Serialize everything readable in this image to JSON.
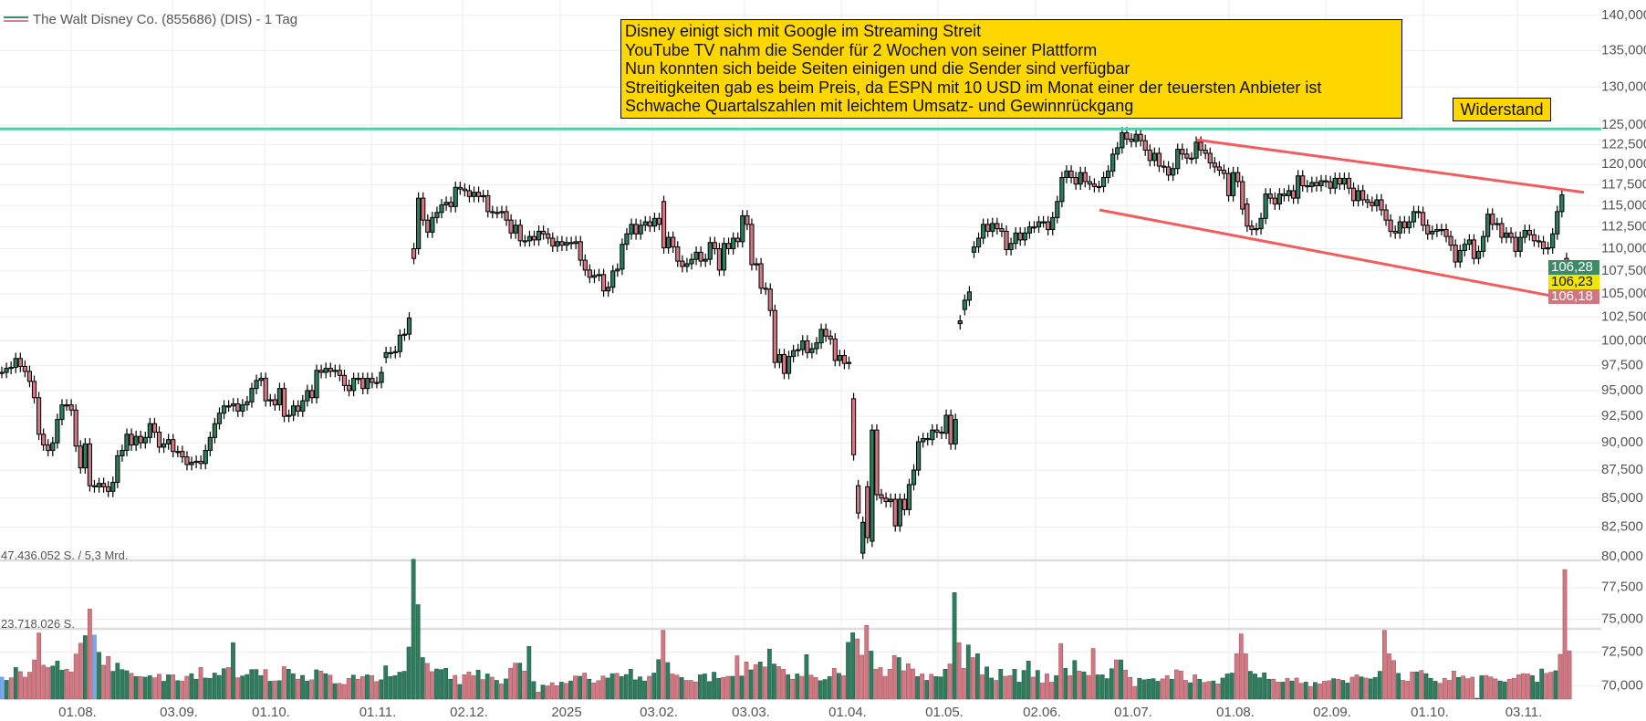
{
  "legend": {
    "title": "The Walt Disney Co. (855686) (DIS) - 1 Tag",
    "icon": "line-legend-icon"
  },
  "annotations": {
    "news_lines": [
      "Disney einigt sich mit Google im Streaming Streit",
      "YouTube TV nahm die Sender für 2 Wochen von seiner Plattform",
      "Nun konnten sich beide Seiten einigen und die Sender sind verfügbar",
      "Streitigkeiten gab es beim Preis, da ESPN mit 10 USD im Monat einer der teuersten Anbieter ist",
      "Schwache Quartalszahlen mit leichtem Umsatz- und Gewinnrückgang"
    ],
    "resistance_label": "Widerstand"
  },
  "price_labels": [
    {
      "value": "106,28",
      "bg": "#3d8a68",
      "fg": "#ffffff"
    },
    {
      "value": "106,23",
      "bg": "#f2e600",
      "fg": "#111111"
    },
    {
      "value": "106,18",
      "bg": "#d07680",
      "fg": "#ffffff"
    }
  ],
  "volume_labels": {
    "max": "47.436.052 S. / 5,3 Mrd.",
    "mid": "23.718.026 S."
  },
  "colors": {
    "up": "#2e7d5e",
    "down": "#d17882",
    "highlight_volume": "#79a8ee",
    "resistance_line": "#4fd1a5",
    "trend_lines": "#f25c5c",
    "annotation_bg": "#ffd700",
    "grid": "#ededed"
  },
  "chart_data": {
    "type": "candlestick",
    "title": "The Walt Disney Co. (855686) (DIS) - 1 Tag",
    "y_scale": "log",
    "ylim": [
      70,
      140
    ],
    "grid": true,
    "y_ticks": [
      140,
      135,
      130,
      125,
      122.5,
      120,
      117.5,
      115,
      112.5,
      110,
      107.5,
      105,
      102.5,
      100,
      97.5,
      95,
      92.5,
      90,
      87.5,
      85,
      82.5,
      80,
      77.5,
      75,
      72.5,
      70
    ],
    "y_tick_labels": [
      "140,000",
      "135,000",
      "130,000",
      "125,000",
      "122,500",
      "120,000",
      "117,500",
      "115,000",
      "112,500",
      "110,000",
      "107,500",
      "105,000",
      "102,500",
      "100,000",
      "97,500",
      "95,000",
      "92,500",
      "90,000",
      "87,500",
      "85,000",
      "82,500",
      "80,000",
      "77,500",
      "75,000",
      "72,500",
      "70,000"
    ],
    "x_tick_labels": [
      "01.08.",
      "03.09.",
      "01.10.",
      "01.11.",
      "02.12.",
      "2025",
      "03.02.",
      "03.03.",
      "01.04.",
      "01.05.",
      "02.06.",
      "01.07.",
      "01.08.",
      "02.09.",
      "01.10.",
      "03.11."
    ],
    "candles_note_format": "close, or [open, close] on gap days",
    "closes": [
      96.8,
      97.2,
      97.3,
      98.2,
      97.4,
      96.9,
      95.9,
      94.3,
      90.8,
      89.8,
      89.3,
      90.0,
      92.2,
      93.6,
      93.6,
      93.1,
      89.7,
      87.7,
      89.9,
      86.1,
      86.0,
      86.3,
      86.0,
      85.6,
      86.4,
      88.8,
      89.3,
      90.8,
      89.8,
      90.6,
      90.0,
      90.5,
      91.8,
      91.0,
      89.6,
      89.9,
      90.3,
      89.2,
      89.2,
      88.7,
      88.0,
      88.2,
      88.3,
      88.1,
      89.3,
      90.5,
      91.8,
      92.8,
      93.5,
      93.5,
      93.7,
      93.0,
      93.6,
      93.9,
      95.2,
      96.0,
      96.2,
      94.0,
      94.1,
      93.6,
      95.2,
      92.5,
      92.6,
      93.5,
      93.0,
      94.0,
      95.0,
      94.3,
      97.0,
      96.8,
      97.2,
      96.9,
      97.0,
      96.5,
      95.5,
      95.0,
      96.2,
      96.2,
      95.2,
      96.2,
      95.8,
      95.8,
      96.8,
      [
        98.3,
        98.8
      ],
      98.8,
      98.9,
      100.6,
      100.7,
      102.4,
      [
        110.0,
        108.9
      ],
      [
        110.0,
        115.9
      ],
      113.3,
      111.9,
      113.6,
      114.2,
      115.1,
      115.4,
      114.9,
      117.2,
      117.0,
      116.8,
      116.1,
      116.6,
      116.1,
      116.2,
      114.3,
      114.2,
      114.2,
      114.3,
      113.3,
      111.8,
      112.7,
      110.9,
      110.9,
      111.4,
      111.0,
      112.0,
      111.7,
      111.2,
      110.3,
      110.8,
      110.4,
      110.7,
      110.6,
      110.8,
      108.7,
      107.6,
      106.8,
      107.0,
      107.1,
      105.3,
      105.7,
      107.5,
      107.7,
      110.5,
      111.7,
      112.8,
      111.7,
      112.7,
      113.1,
      112.6,
      113.5,
      112.8,
      [
        115.5,
        110.1
      ],
      111.3,
      110.2,
      108.6,
      108.0,
      108.3,
      108.8,
      109.6,
      108.6,
      108.8,
      110.7,
      110.0,
      107.6,
      110.6,
      110.0,
      111.2,
      110.8,
      113.8,
      112.8,
      108.2,
      108.3,
      105.6,
      105.5,
      103.2,
      97.8,
      98.6,
      96.7,
      98.4,
      99.0,
      99.1,
      100.0,
      98.8,
      99.2,
      99.8,
      101.2,
      100.5,
      100.2,
      98.0,
      98.5,
      97.7,
      97.8,
      [
        94.2,
        88.9
      ],
      [
        86.1,
        83.7
      ],
      [
        80.3,
        82.9
      ],
      [
        86.0,
        81.6
      ],
      [
        81.3,
        91.2
      ],
      85.3,
      85.0,
      84.7,
      84.9,
      82.6,
      84.9,
      84.0,
      86.2,
      87.5,
      90.1,
      90.4,
      90.3,
      91.2,
      91.0,
      90.9,
      92.6,
      89.9,
      92.2,
      [
        101.8,
        102.1
      ],
      [
        103.3,
        104.3
      ],
      105.2,
      [
        109.6,
        110.2
      ],
      111.2,
      112.8,
      112.0,
      112.9,
      112.3,
      112.0,
      109.9,
      110.6,
      111.8,
      111.0,
      111.8,
      112.5,
      112.5,
      113.1,
      113.1,
      112.2,
      113.6,
      115.5,
      118.4,
      119.2,
      118.4,
      117.6,
      119.0,
      117.9,
      117.6,
      117.3,
      117.3,
      118.4,
      119.2,
      121.3,
      122.1,
      124.0,
      123.2,
      122.9,
      123.8,
      123.0,
      121.8,
      120.5,
      121.4,
      119.8,
      119.7,
      118.7,
      119.5,
      121.9,
      121.3,
      120.8,
      120.8,
      122.8,
      121.8,
      121.4,
      120.2,
      119.7,
      119.3,
      118.9,
      116.2,
      119.0,
      117.9,
      114.6,
      [
        115.2,
        112.6
      ],
      112.2,
      112.3,
      113.5,
      116.4,
      115.9,
      115.2,
      116.4,
      116.2,
      116.8,
      115.9,
      118.6,
      117.4,
      117.3,
      117.8,
      117.4,
      118.0,
      117.9,
      117.1,
      118.3,
      117.6,
      118.3,
      117.1,
      115.6,
      116.8,
      115.7,
      115.4,
      115.0,
      115.7,
      114.5,
      113.3,
      112.0,
      111.8,
      113.1,
      112.4,
      113.1,
      114.3,
      114.2,
      112.7,
      111.7,
      112.0,
      112.2,
      112.2,
      111.4,
      110.4,
      108.5,
      109.8,
      110.5,
      111.0,
      108.9,
      109.7,
      111.4,
      114.0,
      112.8,
      112.9,
      111.3,
      111.8,
      111.3,
      109.7,
      111.3,
      112.1,
      111.6,
      110.9,
      110.8,
      110.0,
      110.1,
      111.7,
      114.3,
      116.3,
      [
        108.9,
        107.7
      ],
      [
        107.2,
        106.23
      ]
    ],
    "volume_millions": [
      7.5,
      6.4,
      7.3,
      10.8,
      9.4,
      7.5,
      9.2,
      13.4,
      22.6,
      11.6,
      10.8,
      11.3,
      13,
      9.9,
      10.2,
      9.3,
      15.4,
      19.1,
      21.7,
      30.8,
      21.9,
      16,
      11.6,
      14.6,
      9.5,
      12.3,
      10.1,
      9.7,
      8.8,
      7.7,
      7.7,
      7.5,
      8,
      7.3,
      8.5,
      6.1,
      8.3,
      8.3,
      6.3,
      6.2,
      7.8,
      8.7,
      6.8,
      10.8,
      7.2,
      7.1,
      8.9,
      8.1,
      10.4,
      10.8,
      19.3,
      7.3,
      7.9,
      8.4,
      10.1,
      10.1,
      8.0,
      10.1,
      6.1,
      6.2,
      6.3,
      11.1,
      10.2,
      8.7,
      6.8,
      8.1,
      6.2,
      6.6,
      10,
      9.6,
      8.7,
      8.2,
      5.3,
      5.4,
      5.0,
      7.1,
      8.2,
      6.8,
      7.7,
      8.3,
      8.0,
      6.0,
      6.6,
      11.4,
      7.7,
      8.0,
      9.2,
      9.5,
      17.8,
      47.8,
      32.3,
      14.2,
      12.2,
      9.4,
      10.3,
      10.1,
      10.5,
      6.8,
      8.1,
      5.0,
      8.3,
      9.3,
      8.0,
      9.9,
      6.7,
      8.6,
      7.5,
      6.4,
      5.2,
      6.9,
      10.5,
      12.3,
      12.3,
      9.6,
      18,
      6.0,
      2.4,
      4.8,
      4.5,
      5.6,
      4.6,
      5.8,
      5.4,
      6.2,
      7.9,
      7.8,
      8.9,
      6.8,
      5.5,
      6.3,
      7.9,
      7.2,
      8.7,
      8.8,
      7.7,
      8.4,
      10.2,
      6.6,
      7.6,
      6.2,
      7.8,
      8.9,
      13.5,
      23.5,
      12.5,
      8.6,
      8.2,
      7.4,
      6.4,
      6.4,
      5.9,
      8.3,
      8.6,
      6.0,
      9.2,
      7.1,
      7.4,
      7.8,
      7.8,
      14.8,
      7.9,
      12.7,
      10,
      11.8,
      12.7,
      11,
      17.1,
      12,
      11.1,
      10.2,
      8.3,
      6.8,
      8.6,
      7.8,
      15.2,
      8.2,
      7.4,
      6.3,
      6.7,
      7.7,
      10.5,
      8.8,
      8.0,
      19.4,
      22.7,
      20.6,
      15,
      25.2,
      16.4,
      10.2,
      10.8,
      7.8,
      10.2,
      14.9,
      14.2,
      9.7,
      12.1,
      10.3,
      7.7,
      8.6,
      6.4,
      8.5,
      7.7,
      7.6,
      10.2,
      12,
      36.4,
      19.3,
      10.5,
      18.5,
      14.2,
      15.5,
      8.3,
      11,
      7.2,
      6.4,
      10.2,
      7.8,
      8.0,
      10.2,
      5.8,
      9.8,
      13,
      7.5,
      9.8,
      5.5,
      8.6,
      5.8,
      8,
      19,
      10.5,
      8,
      13.2,
      9.6,
      9.3,
      8.1,
      17.3,
      8.3,
      8.3,
      7,
      10.4,
      13.4,
      13.4,
      9.9,
      7.4,
      4.3,
      7.1,
      6.6,
      6.8,
      7,
      6.1,
      6.9,
      8,
      6.8,
      10,
      9.6,
      6.4,
      5.6,
      8.3,
      6.8,
      5.7,
      6,
      6.2,
      5.2,
      7.2,
      8.6,
      8.9,
      15.5,
      22.3,
      15.5,
      9.5,
      8.6,
      7.3,
      9,
      6.8,
      6.8,
      5.8,
      5.8,
      7.1,
      6.2,
      7.2,
      5.4,
      5.8,
      4.3,
      5.7,
      5.2,
      6.1,
      6.3,
      7,
      6.8,
      6.4,
      5.5,
      7.5,
      8.3,
      7.6,
      7.2,
      6.9,
      7.4,
      9.5,
      23.5,
      15.5,
      13.2,
      8.8,
      6.4,
      6.1,
      9.3,
      9.3,
      9.8,
      8.7,
      7.1,
      6.1,
      5.4,
      7.1,
      6.4,
      9.6,
      7.4,
      7.9,
      7,
      7.5,
      0.3,
      8,
      8.1,
      7.6,
      6.9,
      6.2,
      5.9,
      6.8,
      7.1,
      8.3,
      8.7,
      8.6,
      8,
      5.8,
      10.3,
      8.8,
      9.2,
      9.7,
      15.3,
      44.3,
      16.5
    ],
    "volume_dir": "bgrgrrrrrrrgggrrrrgrbgrrggggrgrggrrggrgrrggrgggggrgrgggggrgrgrggrggrgrgrgrrrgrrgrrggggggggggrrggggrgrrrgrgrgrgrrgrggrgrrrgrgrgrgrrrggrggggggrggrgrrgrrrgggggrrgrgrgrgrggrrgrgrgrrgggrgrggrrrgrrrrrgrrrgrgrgggrgrrgrgrggrgrrggggrgrrrgrgrgrgrrggggrgrrrgggggrrgrrrgrgrrgrgggrrrgggggrrgrgrrgrgrrrgrggrrgrgggrrrgrrrgrgggrrrrgrrrggrrrggrrrrrgggrrgrrrggrrrgggrrrr",
    "resistance_level": 124.5,
    "trend_channel": {
      "upper": {
        "from": 123.1,
        "to": 116.6
      },
      "lower": {
        "from": 114.5,
        "to": 104.1
      }
    }
  }
}
